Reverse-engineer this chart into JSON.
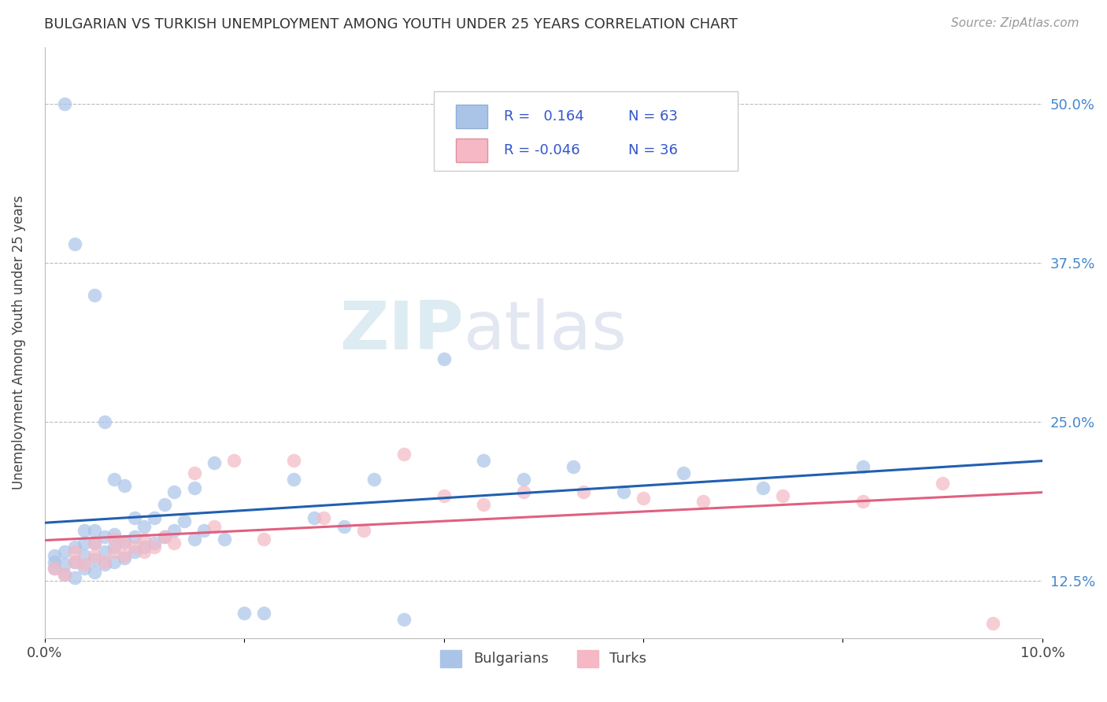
{
  "title": "BULGARIAN VS TURKISH UNEMPLOYMENT AMONG YOUTH UNDER 25 YEARS CORRELATION CHART",
  "source": "Source: ZipAtlas.com",
  "ylabel_label": "Unemployment Among Youth under 25 years",
  "xlim": [
    0.0,
    0.1
  ],
  "ylim": [
    0.08,
    0.545
  ],
  "xtick_vals": [
    0.0,
    0.02,
    0.04,
    0.06,
    0.08,
    0.1
  ],
  "xtick_labels": [
    "0.0%",
    "",
    "",
    "",
    "",
    "10.0%"
  ],
  "ytick_vals": [
    0.125,
    0.25,
    0.375,
    0.5
  ],
  "ytick_labels": [
    "12.5%",
    "25.0%",
    "37.5%",
    "50.0%"
  ],
  "bg_color": "#ffffff",
  "grid_color": "#bbbbbb",
  "bulgarian_color": "#aac4e8",
  "turkish_color": "#f5b8c4",
  "bulgarian_line_color": "#2060b0",
  "turkish_line_color": "#e06080",
  "watermark_zip": "ZIP",
  "watermark_atlas": "atlas",
  "legend_R_bulgarian": "0.164",
  "legend_N_bulgarian": "63",
  "legend_R_turkish": "-0.046",
  "legend_N_turkish": "36",
  "legend_text_color": "#3355cc",
  "bulgarian_x": [
    0.001,
    0.001,
    0.001,
    0.002,
    0.002,
    0.002,
    0.002,
    0.003,
    0.003,
    0.003,
    0.003,
    0.004,
    0.004,
    0.004,
    0.004,
    0.005,
    0.005,
    0.005,
    0.005,
    0.005,
    0.006,
    0.006,
    0.006,
    0.006,
    0.007,
    0.007,
    0.007,
    0.007,
    0.008,
    0.008,
    0.008,
    0.009,
    0.009,
    0.009,
    0.01,
    0.01,
    0.011,
    0.011,
    0.012,
    0.012,
    0.013,
    0.013,
    0.014,
    0.015,
    0.015,
    0.016,
    0.017,
    0.018,
    0.02,
    0.022,
    0.025,
    0.027,
    0.03,
    0.033,
    0.036,
    0.04,
    0.044,
    0.048,
    0.053,
    0.058,
    0.064,
    0.072,
    0.082
  ],
  "bulgarian_y": [
    0.135,
    0.14,
    0.145,
    0.13,
    0.138,
    0.148,
    0.5,
    0.128,
    0.14,
    0.152,
    0.39,
    0.135,
    0.145,
    0.155,
    0.165,
    0.132,
    0.142,
    0.155,
    0.165,
    0.35,
    0.138,
    0.148,
    0.16,
    0.25,
    0.14,
    0.152,
    0.162,
    0.205,
    0.143,
    0.156,
    0.2,
    0.148,
    0.16,
    0.175,
    0.152,
    0.168,
    0.155,
    0.175,
    0.16,
    0.185,
    0.165,
    0.195,
    0.172,
    0.158,
    0.198,
    0.165,
    0.218,
    0.158,
    0.1,
    0.1,
    0.205,
    0.175,
    0.168,
    0.205,
    0.095,
    0.3,
    0.22,
    0.205,
    0.215,
    0.195,
    0.21,
    0.198,
    0.215
  ],
  "turkish_x": [
    0.001,
    0.002,
    0.003,
    0.003,
    0.004,
    0.005,
    0.005,
    0.006,
    0.007,
    0.007,
    0.008,
    0.008,
    0.009,
    0.01,
    0.01,
    0.011,
    0.012,
    0.013,
    0.015,
    0.017,
    0.019,
    0.022,
    0.025,
    0.028,
    0.032,
    0.036,
    0.04,
    0.044,
    0.048,
    0.054,
    0.06,
    0.066,
    0.074,
    0.082,
    0.09,
    0.095
  ],
  "turkish_y": [
    0.135,
    0.13,
    0.14,
    0.148,
    0.138,
    0.145,
    0.155,
    0.14,
    0.148,
    0.158,
    0.145,
    0.155,
    0.152,
    0.148,
    0.158,
    0.152,
    0.16,
    0.155,
    0.21,
    0.168,
    0.22,
    0.158,
    0.22,
    0.175,
    0.165,
    0.225,
    0.192,
    0.185,
    0.195,
    0.195,
    0.19,
    0.188,
    0.192,
    0.188,
    0.202,
    0.092
  ]
}
